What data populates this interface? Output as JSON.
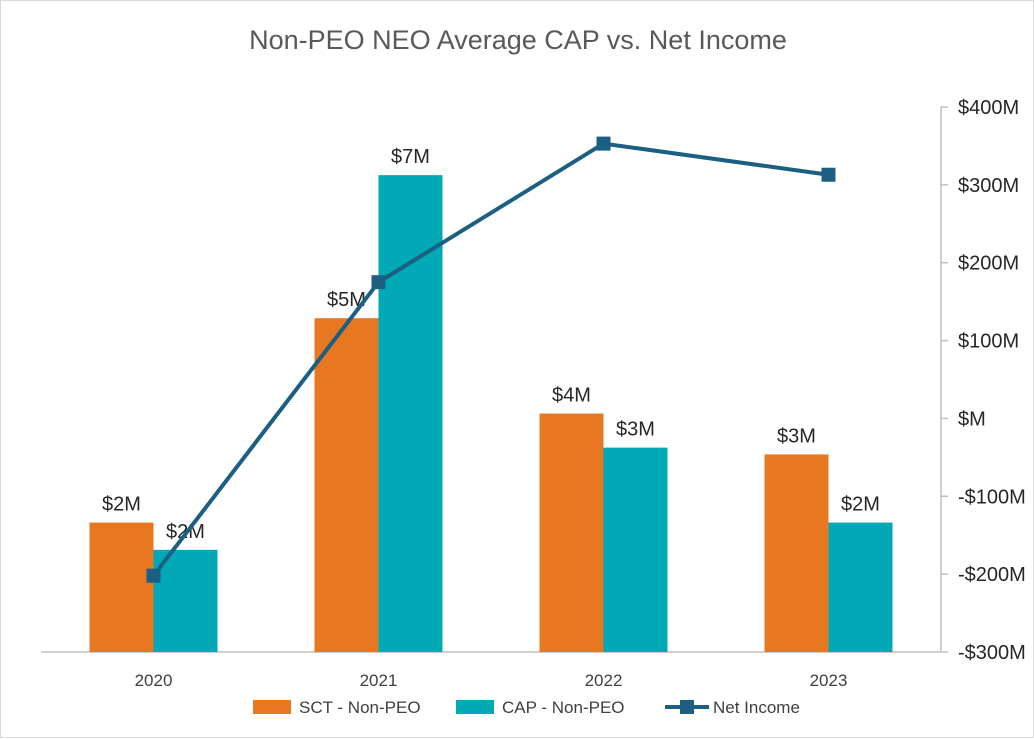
{
  "chart_data": {
    "type": "bar",
    "title": "Non-PEO NEO Average CAP vs. Net Income",
    "categories": [
      "2020",
      "2021",
      "2022",
      "2023"
    ],
    "series": [
      {
        "name": "SCT - Non-PEO",
        "kind": "bar",
        "axis": "left",
        "color": "#E87722",
        "values": [
          1.9,
          4.9,
          3.5,
          2.9
        ],
        "labels": [
          "$2M",
          "$5M",
          "$4M",
          "$3M"
        ]
      },
      {
        "name": "CAP - Non-PEO",
        "kind": "bar",
        "axis": "left",
        "color": "#00A9B5",
        "values": [
          1.5,
          7.0,
          3.0,
          1.9
        ],
        "labels": [
          "$2M",
          "$7M",
          "$3M",
          "$2M"
        ]
      },
      {
        "name": "Net Income",
        "kind": "line",
        "axis": "right",
        "color": "#1B5F82",
        "marker": "square",
        "values": [
          -202,
          175,
          353,
          313
        ]
      }
    ],
    "left_axis": {
      "ylim": [
        0,
        8
      ],
      "visible": false
    },
    "right_axis": {
      "ylim": [
        -300,
        400
      ],
      "ticks": [
        400,
        300,
        200,
        100,
        0,
        -100,
        -200,
        -300
      ],
      "tick_labels": [
        "$400M",
        "$300M",
        "$200M",
        "$100M",
        "$M",
        "-$100M",
        "-$200M",
        "-$300M"
      ]
    },
    "grid": false,
    "legend_position": "bottom"
  }
}
